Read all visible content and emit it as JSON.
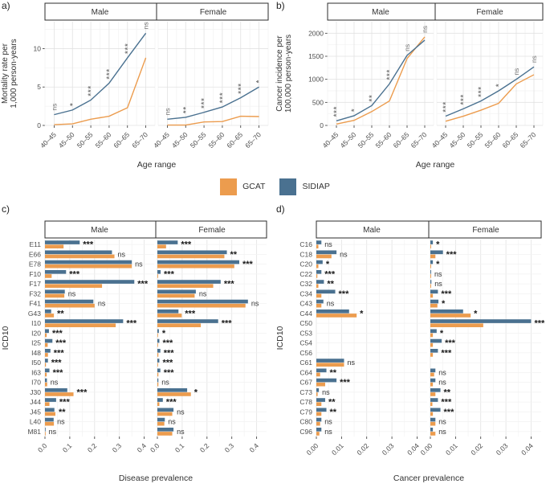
{
  "panel_labels": {
    "a": "a)",
    "b": "b)",
    "c": "c)",
    "d": "d)"
  },
  "legend": {
    "items": [
      {
        "label": "GCAT",
        "color": "#EC9C4E"
      },
      {
        "label": "SIDIAP",
        "color": "#4A7190"
      }
    ]
  },
  "colors": {
    "grid_major": "#E2E2E2",
    "grid_minor": "#F2F2F2",
    "axis_text": "#4D4D4D",
    "title_text": "#333333",
    "strip_border": "#2B2B2B",
    "strip_fill": "#FFFFFF",
    "annotation": "#757575",
    "star_dark": "#1A1A1A",
    "ns_dark": "#333333",
    "tick": "#333333"
  },
  "chart_data": [
    {
      "id": "a",
      "type": "line",
      "ylabel_lines": [
        "Mortality rate per",
        "1,000 person-years"
      ],
      "xlabel": "Age range",
      "categories": [
        "40–45",
        "45–50",
        "50–55",
        "55–60",
        "60–65",
        "65–70"
      ],
      "yticks": [
        0,
        5,
        10
      ],
      "ytick_labels": [
        "0",
        "5",
        "10"
      ],
      "ylim": [
        0,
        13.5
      ],
      "facets": [
        {
          "label": "Male",
          "series": [
            {
              "name": "GCAT",
              "values": [
                0.1,
                0.2,
                0.8,
                1.2,
                2.3,
                8.8
              ]
            },
            {
              "name": "SIDIAP",
              "values": [
                1.4,
                2.0,
                3.3,
                5.5,
                8.8,
                12.0
              ]
            }
          ],
          "annotations": [
            "ns",
            "*",
            "***",
            "***",
            "***",
            "ns"
          ]
        },
        {
          "label": "Female",
          "series": [
            {
              "name": "GCAT",
              "values": [
                0.05,
                0.05,
                0.45,
                0.5,
                1.2,
                1.15
              ]
            },
            {
              "name": "SIDIAP",
              "values": [
                0.8,
                1.05,
                1.7,
                2.4,
                3.6,
                5.0
              ]
            }
          ],
          "annotations": [
            "ns",
            "**",
            "***",
            "***",
            "***",
            "*"
          ]
        }
      ]
    },
    {
      "id": "b",
      "type": "line",
      "ylabel_lines": [
        "Cancer incidence per",
        "100,000 person-years"
      ],
      "xlabel": "Age range",
      "categories": [
        "40–45",
        "45–50",
        "50–55",
        "55–60",
        "60–65",
        "65–70"
      ],
      "yticks": [
        0,
        500,
        1000,
        1500,
        2000
      ],
      "ytick_labels": [
        "0",
        "500",
        "1000",
        "1500",
        "2000"
      ],
      "ylim": [
        0,
        2250
      ],
      "facets": [
        {
          "label": "Male",
          "series": [
            {
              "name": "GCAT",
              "values": [
                30,
                110,
                300,
                530,
                1450,
                1920
              ]
            },
            {
              "name": "SIDIAP",
              "values": [
                100,
                210,
                430,
                900,
                1520,
                1850
              ]
            }
          ],
          "annotations": [
            "***",
            "*",
            "**",
            "***",
            "ns",
            "ns"
          ]
        },
        {
          "label": "Female",
          "series": [
            {
              "name": "GCAT",
              "values": [
                90,
                200,
                330,
                480,
                900,
                1100
              ]
            },
            {
              "name": "SIDIAP",
              "values": [
                200,
                360,
                530,
                750,
                1000,
                1270
              ]
            }
          ],
          "annotations": [
            "***",
            "***",
            "***",
            "*",
            "ns",
            "ns"
          ]
        }
      ]
    },
    {
      "id": "c",
      "type": "bar",
      "ylabel": "ICD10",
      "xlabel": "Disease prevalence",
      "categories": [
        "E11",
        "E66",
        "E78",
        "F10",
        "F17",
        "F32",
        "F41",
        "G43",
        "I10",
        "I20",
        "I25",
        "I48",
        "I50",
        "I63",
        "I70",
        "J30",
        "J44",
        "J45",
        "L40",
        "M81"
      ],
      "xticks": [
        0,
        0.1,
        0.2,
        0.3,
        0.4
      ],
      "xtick_labels": [
        "0.0",
        "0.1",
        "0.2",
        "0.3",
        "0.4"
      ],
      "xlim": [
        0,
        0.44
      ],
      "facets": [
        {
          "label": "Male",
          "series": [
            {
              "name": "SIDIAP",
              "values": [
                0.14,
                0.27,
                0.35,
                0.085,
                0.36,
                0.08,
                0.195,
                0.025,
                0.315,
                0.016,
                0.03,
                0.022,
                0.012,
                0.018,
                0.008,
                0.09,
                0.045,
                0.038,
                0.035,
                0.002
              ]
            },
            {
              "name": "GCAT",
              "values": [
                0.075,
                0.28,
                0.35,
                0.027,
                0.23,
                0.078,
                0.2,
                0.036,
                0.285,
                0.007,
                0.011,
                0.012,
                0.004,
                0.007,
                0.009,
                0.115,
                0.018,
                0.042,
                0.036,
                0.002
              ]
            }
          ],
          "annotations": [
            "***",
            "ns",
            "ns",
            "***",
            "***",
            "ns",
            "ns",
            "**",
            "***",
            "***",
            "***",
            "***",
            "***",
            "***",
            "ns",
            "***",
            "***",
            "**",
            "ns",
            "ns"
          ]
        },
        {
          "label": "Female",
          "series": [
            {
              "name": "SIDIAP",
              "values": [
                0.082,
                0.28,
                0.33,
                0.013,
                0.255,
                0.155,
                0.365,
                0.085,
                0.245,
                0.006,
                0.008,
                0.012,
                0.008,
                0.012,
                0.004,
                0.12,
                0.022,
                0.065,
                0.03,
                0.065
              ]
            },
            {
              "name": "GCAT",
              "values": [
                0.035,
                0.27,
                0.31,
                0.003,
                0.225,
                0.15,
                0.355,
                0.098,
                0.175,
                0.002,
                0.002,
                0.004,
                0.002,
                0.004,
                0.004,
                0.135,
                0.008,
                0.06,
                0.028,
                0.06
              ]
            }
          ],
          "annotations": [
            "***",
            "**",
            "***",
            "***",
            "***",
            "ns",
            "ns",
            "***",
            "***",
            "*",
            "***",
            "***",
            "***",
            "***",
            "ns",
            "*",
            "***",
            "ns",
            "ns",
            "ns"
          ]
        }
      ]
    },
    {
      "id": "d",
      "type": "bar",
      "ylabel": "ICD10",
      "xlabel": "Cancer prevalence",
      "categories": [
        "C16",
        "C18",
        "C20",
        "C22",
        "C32",
        "C34",
        "C43",
        "C44",
        "C50",
        "C53",
        "C54",
        "C56",
        "C61",
        "C64",
        "C67",
        "C73",
        "C78",
        "C79",
        "C80",
        "C96"
      ],
      "xticks": [
        0,
        0.01,
        0.02,
        0.03,
        0.04
      ],
      "xtick_labels": [
        "0.00",
        "0.01",
        "0.02",
        "0.03",
        "0.04"
      ],
      "xlim": [
        0,
        0.044
      ],
      "facets": [
        {
          "label": "Male",
          "series": [
            {
              "name": "SIDIAP",
              "values": [
                0.002,
                0.008,
                0.0025,
                0.002,
                0.003,
                0.0075,
                0.0028,
                0.013,
                null,
                null,
                null,
                null,
                0.011,
                0.004,
                0.008,
                0.001,
                0.0035,
                0.004,
                0.002,
                0.002
              ]
            },
            {
              "name": "GCAT",
              "values": [
                0.0008,
                0.006,
                0.0008,
                0.0004,
                0.0008,
                0.002,
                0.002,
                0.016,
                null,
                null,
                null,
                null,
                0.011,
                0.0015,
                0.0035,
                0.0005,
                0.002,
                0.002,
                0.0015,
                0.0012
              ]
            }
          ],
          "annotations": [
            "ns",
            "ns",
            "*",
            "***",
            "**",
            "***",
            "ns",
            "*",
            "",
            "",
            "",
            "",
            "ns",
            "**",
            "***",
            "ns",
            "**",
            "**",
            "ns",
            "ns"
          ]
        },
        {
          "label": "Female",
          "series": [
            {
              "name": "SIDIAP",
              "values": [
                0.001,
                0.005,
                0.001,
                0.0003,
                0.0004,
                0.003,
                0.0032,
                0.013,
                0.04,
                0.0025,
                0.0045,
                0.003,
                null,
                0.002,
                0.002,
                0.004,
                0.003,
                0.004,
                0.002,
                0.001
              ]
            },
            {
              "name": "GCAT",
              "values": [
                0.0003,
                0.002,
                0.0003,
                0.0003,
                0.0003,
                0.001,
                0.0028,
                0.016,
                0.021,
                0.001,
                0.001,
                0.001,
                null,
                0.0015,
                0.001,
                0.002,
                0.0008,
                0.001,
                0.002,
                0.002
              ]
            }
          ],
          "annotations": [
            "*",
            "***",
            "*",
            "ns",
            "ns",
            "***",
            "*",
            "*",
            "***",
            "*",
            "***",
            "***",
            "",
            "ns",
            "ns",
            "**",
            "***",
            "***",
            "ns",
            "ns"
          ]
        }
      ]
    }
  ]
}
